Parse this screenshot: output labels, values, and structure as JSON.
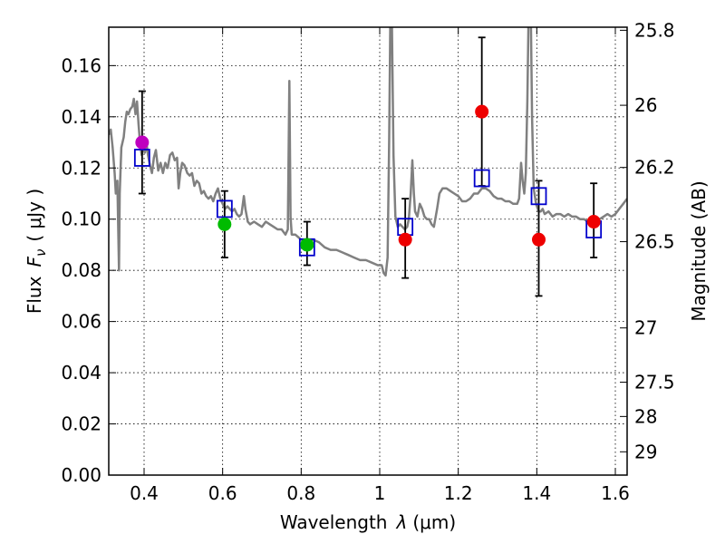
{
  "chart_data": {
    "type": "scatter",
    "xlabel_main": "Wavelength",
    "xlabel_symbol": "λ",
    "xlabel_unit": "(μm)",
    "ylabel_prefix": "Flux",
    "ylabel_symbol": "F",
    "ylabel_subscript": "ν",
    "ylabel_unit": "( μJy )",
    "y2label": "Magnitude (AB)",
    "xlim": [
      0.31,
      1.63
    ],
    "ylim": [
      0.0,
      0.175
    ],
    "grid": true,
    "x_ticks": [
      0.4,
      0.6,
      0.8,
      1.0,
      1.2,
      1.4,
      1.6
    ],
    "x_tick_labels": [
      "0.4",
      "0.6",
      "0.8",
      "1",
      "1.2",
      "1.4",
      "1.6"
    ],
    "y_ticks": [
      0.0,
      0.02,
      0.04,
      0.06,
      0.08,
      0.1,
      0.12,
      0.14,
      0.16
    ],
    "y_tick_labels": [
      "0.00",
      "0.02",
      "0.04",
      "0.06",
      "0.08",
      "0.10",
      "0.12",
      "0.14",
      "0.16"
    ],
    "magnitude_ticks": [
      {
        "label": "25.8",
        "flux": 0.1738
      },
      {
        "label": "26",
        "flux": 0.1445
      },
      {
        "label": "26.2",
        "flux": 0.1202
      },
      {
        "label": "26.5",
        "flux": 0.0912
      },
      {
        "label": "27",
        "flux": 0.0575
      },
      {
        "label": "27.5",
        "flux": 0.0363
      },
      {
        "label": "28",
        "flux": 0.0229
      },
      {
        "label": "29",
        "flux": 0.0091
      }
    ],
    "colors": {
      "spectrum": "#808080",
      "model_box": "#0000cc",
      "error_bar": "#000000",
      "purple": "#bf00bf",
      "green": "#00bb00",
      "red": "#ee0000"
    },
    "model_points": [
      {
        "x": 0.395,
        "y": 0.124
      },
      {
        "x": 0.605,
        "y": 0.104
      },
      {
        "x": 0.815,
        "y": 0.089
      },
      {
        "x": 1.065,
        "y": 0.097
      },
      {
        "x": 1.26,
        "y": 0.116
      },
      {
        "x": 1.405,
        "y": 0.109
      },
      {
        "x": 1.545,
        "y": 0.096
      }
    ],
    "observed_points": [
      {
        "x": 0.395,
        "y": 0.13,
        "err_lo": 0.11,
        "err_hi": 0.15,
        "color": "purple"
      },
      {
        "x": 0.605,
        "y": 0.098,
        "err_lo": 0.085,
        "err_hi": 0.111,
        "color": "green"
      },
      {
        "x": 0.815,
        "y": 0.09,
        "err_lo": 0.082,
        "err_hi": 0.099,
        "color": "green"
      },
      {
        "x": 1.065,
        "y": 0.092,
        "err_lo": 0.077,
        "err_hi": 0.108,
        "color": "red"
      },
      {
        "x": 1.26,
        "y": 0.142,
        "err_lo": 0.113,
        "err_hi": 0.171,
        "color": "red"
      },
      {
        "x": 1.405,
        "y": 0.092,
        "err_lo": 0.07,
        "err_hi": 0.115,
        "color": "red"
      },
      {
        "x": 1.545,
        "y": 0.099,
        "err_lo": 0.085,
        "err_hi": 0.114,
        "color": "red"
      }
    ],
    "spectrum": [
      [
        0.31,
        0.133
      ],
      [
        0.315,
        0.135
      ],
      [
        0.32,
        0.128
      ],
      [
        0.325,
        0.118
      ],
      [
        0.328,
        0.11
      ],
      [
        0.332,
        0.115
      ],
      [
        0.336,
        0.08
      ],
      [
        0.338,
        0.11
      ],
      [
        0.342,
        0.128
      ],
      [
        0.348,
        0.132
      ],
      [
        0.352,
        0.138
      ],
      [
        0.356,
        0.142
      ],
      [
        0.36,
        0.141
      ],
      [
        0.365,
        0.143
      ],
      [
        0.37,
        0.144
      ],
      [
        0.374,
        0.147
      ],
      [
        0.378,
        0.141
      ],
      [
        0.382,
        0.146
      ],
      [
        0.386,
        0.137
      ],
      [
        0.39,
        0.129
      ],
      [
        0.394,
        0.125
      ],
      [
        0.398,
        0.128
      ],
      [
        0.402,
        0.126
      ],
      [
        0.406,
        0.13
      ],
      [
        0.41,
        0.125
      ],
      [
        0.415,
        0.121
      ],
      [
        0.42,
        0.118
      ],
      [
        0.425,
        0.124
      ],
      [
        0.43,
        0.127
      ],
      [
        0.436,
        0.119
      ],
      [
        0.442,
        0.122
      ],
      [
        0.448,
        0.118
      ],
      [
        0.454,
        0.122
      ],
      [
        0.46,
        0.12
      ],
      [
        0.466,
        0.125
      ],
      [
        0.472,
        0.126
      ],
      [
        0.478,
        0.123
      ],
      [
        0.484,
        0.124
      ],
      [
        0.488,
        0.112
      ],
      [
        0.492,
        0.118
      ],
      [
        0.497,
        0.122
      ],
      [
        0.503,
        0.121
      ],
      [
        0.51,
        0.118
      ],
      [
        0.516,
        0.117
      ],
      [
        0.522,
        0.118
      ],
      [
        0.528,
        0.113
      ],
      [
        0.534,
        0.115
      ],
      [
        0.54,
        0.114
      ],
      [
        0.546,
        0.11
      ],
      [
        0.552,
        0.111
      ],
      [
        0.558,
        0.109
      ],
      [
        0.564,
        0.108
      ],
      [
        0.57,
        0.109
      ],
      [
        0.576,
        0.107
      ],
      [
        0.582,
        0.11
      ],
      [
        0.588,
        0.112
      ],
      [
        0.594,
        0.108
      ],
      [
        0.6,
        0.106
      ],
      [
        0.606,
        0.104
      ],
      [
        0.612,
        0.105
      ],
      [
        0.618,
        0.104
      ],
      [
        0.624,
        0.103
      ],
      [
        0.63,
        0.104
      ],
      [
        0.636,
        0.102
      ],
      [
        0.642,
        0.101
      ],
      [
        0.648,
        0.102
      ],
      [
        0.654,
        0.109
      ],
      [
        0.658,
        0.104
      ],
      [
        0.664,
        0.099
      ],
      [
        0.67,
        0.098
      ],
      [
        0.68,
        0.099
      ],
      [
        0.69,
        0.098
      ],
      [
        0.7,
        0.097
      ],
      [
        0.71,
        0.099
      ],
      [
        0.72,
        0.098
      ],
      [
        0.73,
        0.097
      ],
      [
        0.74,
        0.096
      ],
      [
        0.75,
        0.096
      ],
      [
        0.76,
        0.094
      ],
      [
        0.766,
        0.096
      ],
      [
        0.77,
        0.154
      ],
      [
        0.773,
        0.101
      ],
      [
        0.776,
        0.094
      ],
      [
        0.785,
        0.094
      ],
      [
        0.8,
        0.092
      ],
      [
        0.815,
        0.091
      ],
      [
        0.83,
        0.092
      ],
      [
        0.845,
        0.091
      ],
      [
        0.86,
        0.089
      ],
      [
        0.875,
        0.088
      ],
      [
        0.89,
        0.088
      ],
      [
        0.905,
        0.087
      ],
      [
        0.92,
        0.086
      ],
      [
        0.935,
        0.085
      ],
      [
        0.95,
        0.084
      ],
      [
        0.965,
        0.084
      ],
      [
        0.98,
        0.083
      ],
      [
        0.995,
        0.082
      ],
      [
        1.005,
        0.082
      ],
      [
        1.01,
        0.079
      ],
      [
        1.015,
        0.078
      ],
      [
        1.02,
        0.085
      ],
      [
        1.024,
        0.13
      ],
      [
        1.027,
        0.178
      ],
      [
        1.031,
        0.178
      ],
      [
        1.035,
        0.125
      ],
      [
        1.04,
        0.101
      ],
      [
        1.046,
        0.097
      ],
      [
        1.052,
        0.098
      ],
      [
        1.058,
        0.097
      ],
      [
        1.064,
        0.096
      ],
      [
        1.07,
        0.097
      ],
      [
        1.074,
        0.1
      ],
      [
        1.079,
        0.11
      ],
      [
        1.083,
        0.123
      ],
      [
        1.087,
        0.11
      ],
      [
        1.09,
        0.103
      ],
      [
        1.096,
        0.101
      ],
      [
        1.102,
        0.106
      ],
      [
        1.108,
        0.104
      ],
      [
        1.114,
        0.101
      ],
      [
        1.12,
        0.1
      ],
      [
        1.126,
        0.1
      ],
      [
        1.132,
        0.098
      ],
      [
        1.138,
        0.097
      ],
      [
        1.146,
        0.104
      ],
      [
        1.152,
        0.11
      ],
      [
        1.16,
        0.112
      ],
      [
        1.17,
        0.112
      ],
      [
        1.18,
        0.111
      ],
      [
        1.19,
        0.11
      ],
      [
        1.2,
        0.109
      ],
      [
        1.21,
        0.107
      ],
      [
        1.22,
        0.107
      ],
      [
        1.23,
        0.108
      ],
      [
        1.24,
        0.11
      ],
      [
        1.25,
        0.11
      ],
      [
        1.26,
        0.112
      ],
      [
        1.27,
        0.112
      ],
      [
        1.28,
        0.111
      ],
      [
        1.29,
        0.109
      ],
      [
        1.3,
        0.108
      ],
      [
        1.31,
        0.108
      ],
      [
        1.32,
        0.107
      ],
      [
        1.33,
        0.107
      ],
      [
        1.34,
        0.106
      ],
      [
        1.35,
        0.106
      ],
      [
        1.355,
        0.108
      ],
      [
        1.36,
        0.122
      ],
      [
        1.364,
        0.115
      ],
      [
        1.368,
        0.11
      ],
      [
        1.372,
        0.118
      ],
      [
        1.376,
        0.146
      ],
      [
        1.379,
        0.178
      ],
      [
        1.385,
        0.178
      ],
      [
        1.388,
        0.14
      ],
      [
        1.392,
        0.112
      ],
      [
        1.398,
        0.106
      ],
      [
        1.405,
        0.103
      ],
      [
        1.41,
        0.103
      ],
      [
        1.415,
        0.104
      ],
      [
        1.42,
        0.102
      ],
      [
        1.43,
        0.103
      ],
      [
        1.44,
        0.101
      ],
      [
        1.45,
        0.102
      ],
      [
        1.46,
        0.102
      ],
      [
        1.47,
        0.101
      ],
      [
        1.48,
        0.102
      ],
      [
        1.49,
        0.101
      ],
      [
        1.5,
        0.101
      ],
      [
        1.51,
        0.1
      ],
      [
        1.52,
        0.1
      ],
      [
        1.53,
        0.099
      ],
      [
        1.54,
        0.099
      ],
      [
        1.55,
        0.098
      ],
      [
        1.56,
        0.1
      ],
      [
        1.57,
        0.101
      ],
      [
        1.58,
        0.102
      ],
      [
        1.59,
        0.101
      ],
      [
        1.6,
        0.102
      ],
      [
        1.61,
        0.104
      ],
      [
        1.62,
        0.106
      ],
      [
        1.63,
        0.108
      ]
    ]
  }
}
